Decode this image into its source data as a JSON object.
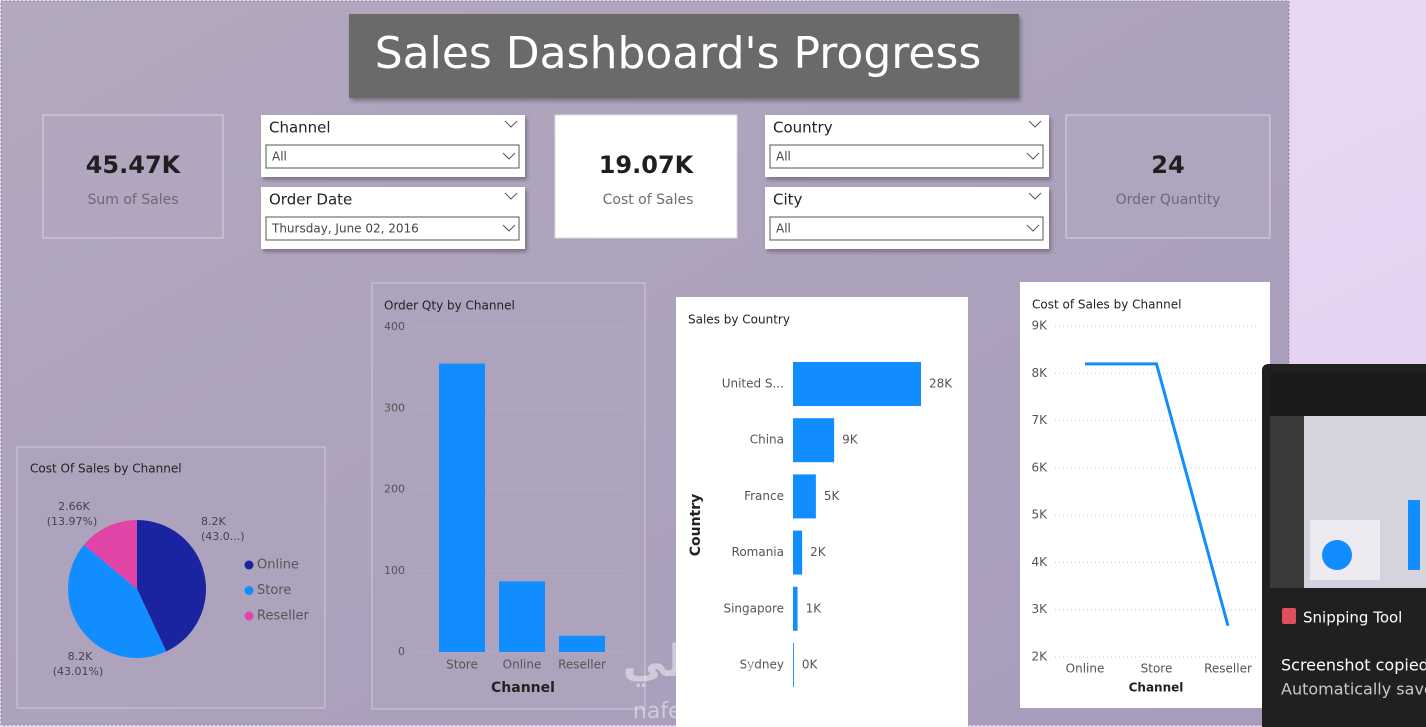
{
  "header": {
    "title": "Sales Dashboard's Progress"
  },
  "kpis": [
    {
      "value": "45.47K",
      "label": "Sum of Sales"
    },
    {
      "value": "19.07K",
      "label": "Cost of Sales"
    },
    {
      "value": "24",
      "label": "Order Quantity"
    }
  ],
  "filters": [
    {
      "label": "Channel",
      "selected": "All"
    },
    {
      "label": "Order Date",
      "selected": "Thursday, June 02, 2016"
    },
    {
      "label": "Country",
      "selected": "All"
    },
    {
      "label": "City",
      "selected": "All"
    }
  ],
  "chart_data": [
    {
      "type": "pie",
      "title": "Cost Of Sales by Channel",
      "categories": [
        "Online",
        "Store",
        "Reseller"
      ],
      "values": [
        8200,
        8200,
        2660
      ],
      "value_labels": [
        "8.2K",
        "8.2K",
        "2.66K"
      ],
      "percent_labels": [
        "(43.0...)",
        "(43.01%)",
        "(13.97%)"
      ],
      "colors": [
        "#1a23a0",
        "#118dff",
        "#e044a7"
      ],
      "legend": "right"
    },
    {
      "type": "bar",
      "title": "Order Qty by Channel",
      "categories": [
        "Store",
        "Online",
        "Reseller"
      ],
      "values": [
        355,
        87,
        20
      ],
      "color": "#118dff",
      "ylim": [
        0,
        400
      ],
      "yticks": [
        0,
        100,
        200,
        300,
        400
      ],
      "xlabel": "Channel",
      "grid": true
    },
    {
      "type": "hbar",
      "title": "Sales by Country",
      "categories": [
        "United S...",
        "China",
        "France",
        "Romania",
        "Singapore",
        "Sydney"
      ],
      "values": [
        28000,
        9000,
        5000,
        2000,
        1000,
        200
      ],
      "value_labels": [
        "28K",
        "9K",
        "5K",
        "2K",
        "1K",
        "0K"
      ],
      "color": "#118dff",
      "ylabel": "Country"
    },
    {
      "type": "line",
      "title": "Cost of Sales by Channel",
      "categories": [
        "Online",
        "Store",
        "Reseller"
      ],
      "values": [
        8200,
        8200,
        2660
      ],
      "color": "#118dff",
      "ylim": [
        2000,
        9000
      ],
      "yticks": [
        {
          "value": 2000,
          "label": "2K"
        },
        {
          "value": 3000,
          "label": "3K"
        },
        {
          "value": 4000,
          "label": "4K"
        },
        {
          "value": 5000,
          "label": "5K"
        },
        {
          "value": 6000,
          "label": "6K"
        },
        {
          "value": 7000,
          "label": "7K"
        },
        {
          "value": 8000,
          "label": "8K"
        },
        {
          "value": 9000,
          "label": "9K"
        }
      ],
      "xlabel": "Channel",
      "grid": true
    }
  ],
  "notification": {
    "app": "Snipping Tool",
    "title": "Screenshot copied",
    "body": "Automatically save"
  },
  "watermark": {
    "arabic": "نفذلي",
    "latin": "nafezly.com"
  }
}
